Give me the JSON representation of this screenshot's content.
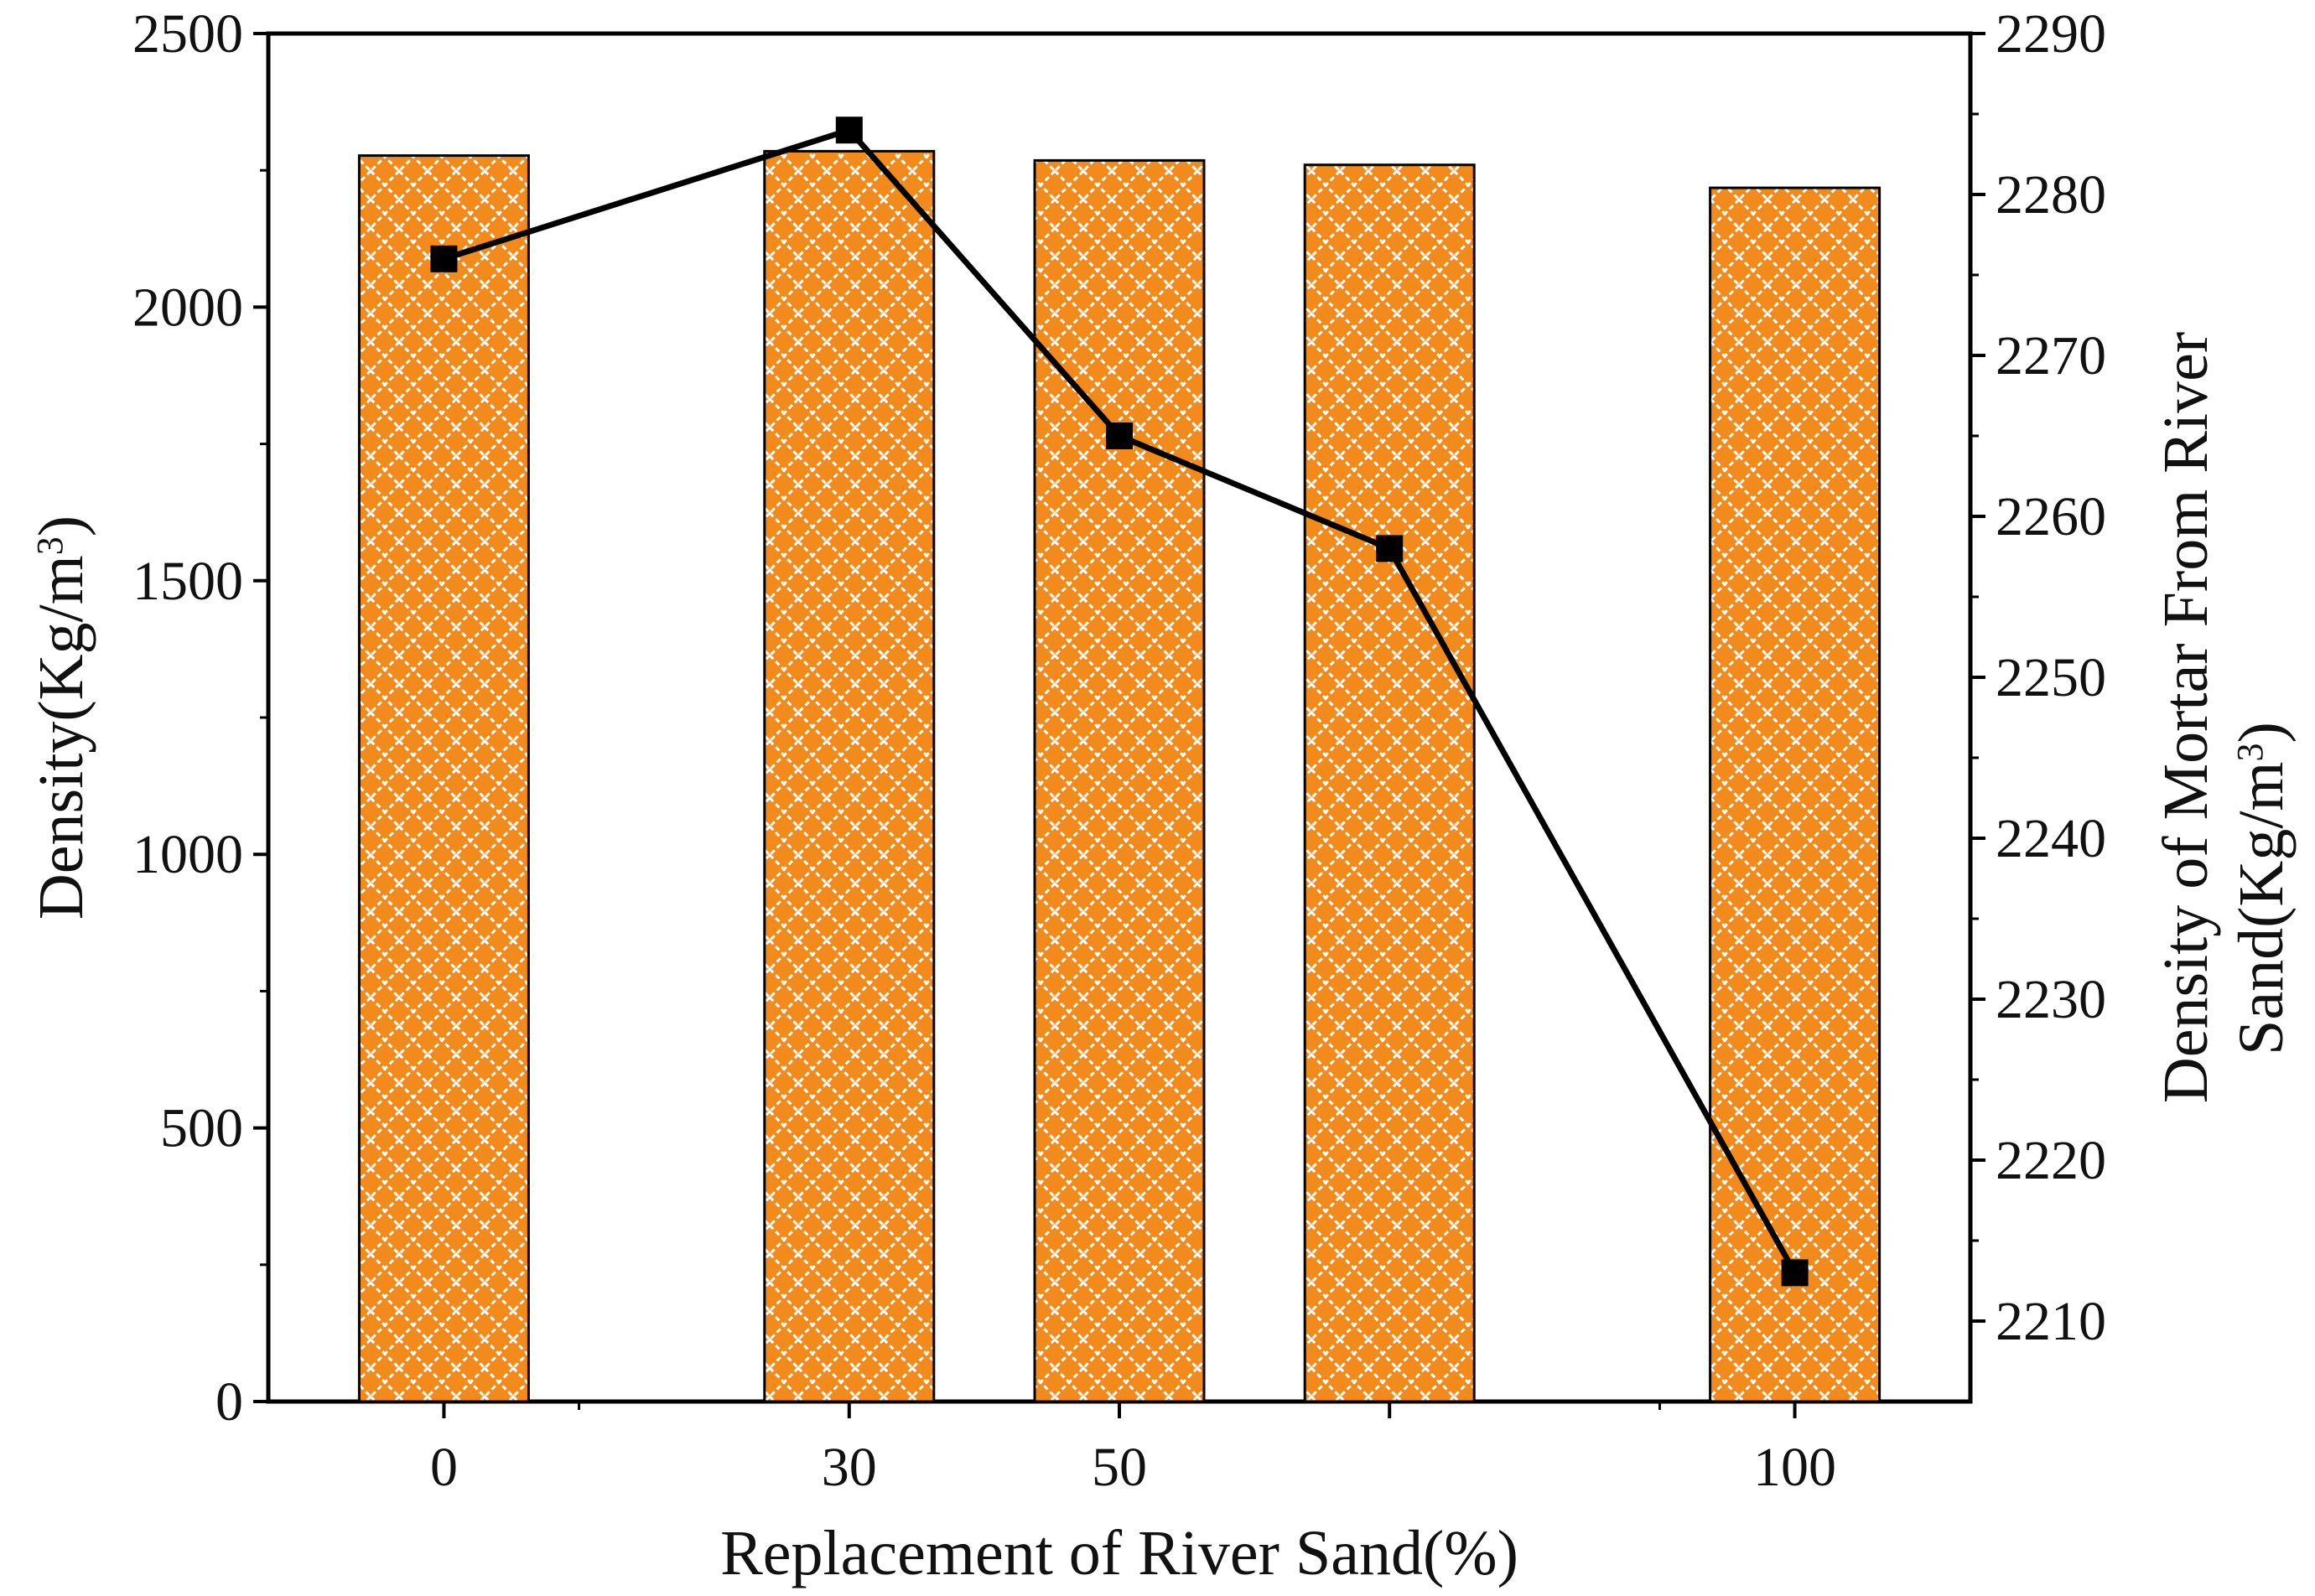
{
  "chart_data": {
    "type": "bar",
    "title": "",
    "xlabel": "Replacement of River Sand(%)",
    "ylabel": {
      "text": "Density(Kg/m",
      "sup": "3",
      "close": ")"
    },
    "y2label": {
      "line1": "Density of Mortar From River",
      "line2_text": "Sand(Kg/m",
      "line2_sup": "3",
      "line2_close": ")"
    },
    "x": [
      0,
      30,
      50,
      70,
      100
    ],
    "x_tick_labels": [
      "0",
      "30",
      "50",
      "",
      "100"
    ],
    "xlim": [
      -13,
      113
    ],
    "ylim": [
      0,
      2500
    ],
    "y_ticks": [
      0,
      500,
      1000,
      1500,
      2000,
      2500
    ],
    "y2lim": [
      2205,
      2290
    ],
    "y2_ticks": [
      2210,
      2220,
      2230,
      2240,
      2250,
      2260,
      2270,
      2280,
      2290
    ],
    "series": [
      {
        "name": "Density (bars)",
        "axis": "left",
        "type": "bar",
        "values": [
          2277,
          2285,
          2268,
          2260,
          2218
        ],
        "color": "#f38a1c",
        "pattern": "crosshatch"
      },
      {
        "name": "Density of Mortar From River Sand (line)",
        "axis": "right",
        "type": "line",
        "marker": "square",
        "values": [
          2276,
          2284,
          2265,
          2258,
          2213
        ],
        "color": "#000000"
      }
    ],
    "grid": false,
    "legend": "none"
  }
}
